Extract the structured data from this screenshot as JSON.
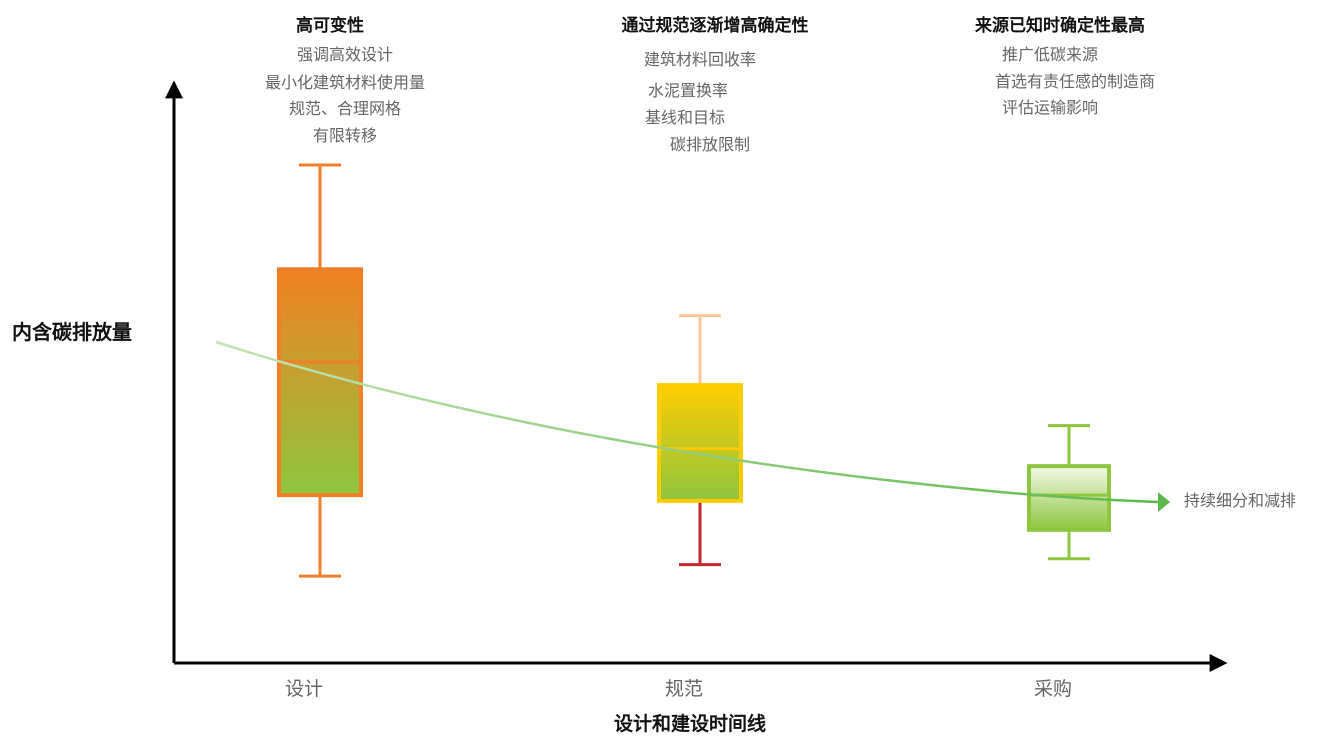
{
  "chart_data": {
    "type": "box",
    "ylabel": "内含碳排放量",
    "xlabel": "设计和建设时间线",
    "categories": [
      "设计",
      "规范",
      "采购"
    ],
    "boxes": [
      {
        "category": "设计",
        "heading": "高可变性",
        "notes": [
          "强调高效设计",
          "最小化建筑材料使用量",
          "规范、合理网格",
          "有限转移"
        ],
        "whisker_high": 0.86,
        "q3": 0.68,
        "median": 0.52,
        "q1": 0.29,
        "whisker_low": 0.15,
        "color_top": "#f28122",
        "color_bottom": "#8ec63f",
        "outline": "#f07f2a",
        "whisker_high_color": "#f07f2a",
        "whisker_low_color": "#f07f2a"
      },
      {
        "category": "规范",
        "heading": "通过规范逐渐增高确定性",
        "notes": [
          "建筑材料回收率",
          "水泥置换率",
          "基线和目标",
          "碳排放限制"
        ],
        "whisker_high": 0.6,
        "q3": 0.48,
        "median": 0.37,
        "q1": 0.28,
        "whisker_low": 0.17,
        "color_top": "#ffcc00",
        "color_bottom": "#8ec63f",
        "outline": "#ffcc00",
        "whisker_high_color": "#f6c89a",
        "whisker_low_color": "#c1272d"
      },
      {
        "category": "采购",
        "heading": "来源已知时确定性最高",
        "notes": [
          "推广低碳来源",
          "首选有责任感的制造商",
          "评估运输影响"
        ],
        "whisker_high": 0.41,
        "q3": 0.34,
        "median": 0.29,
        "q1": 0.23,
        "whisker_low": 0.18,
        "color_top": "#f2f9e8",
        "color_bottom": "#8ec63f",
        "outline": "#8ec63f",
        "whisker_high_color": "#8ec63f",
        "whisker_low_color": "#8ec63f"
      }
    ],
    "trend": {
      "label": "持续细分和减排",
      "color_start": "#c5e3b5",
      "color_end": "#5cb849"
    },
    "axes_color": "#000000"
  }
}
